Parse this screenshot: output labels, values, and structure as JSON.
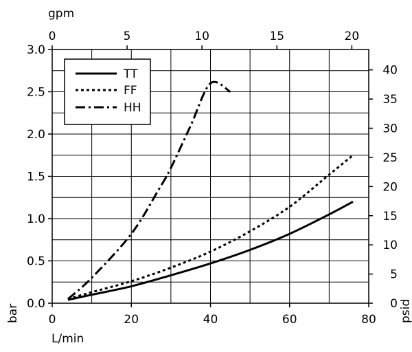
{
  "chart_data": {
    "type": "line",
    "xlabel": "L/min",
    "ylabel": "bar",
    "x_top_label": "gpm",
    "y_right_label": "psid",
    "xlim": [
      0,
      80
    ],
    "ylim": [
      0,
      3.0
    ],
    "x_top_lim": [
      0,
      21.13
    ],
    "y_right_lim": [
      0,
      43.5
    ],
    "x_ticks": [
      0,
      20,
      40,
      60,
      80
    ],
    "y_ticks": [
      0.0,
      0.5,
      1.0,
      1.5,
      2.0,
      2.5,
      3.0
    ],
    "x_top_ticks": [
      0,
      5,
      10,
      15,
      20
    ],
    "y_right_ticks": [
      0,
      5,
      10,
      15,
      20,
      25,
      30,
      35,
      40
    ],
    "x_tick_labels": [
      "0",
      "20",
      "40",
      "60",
      "80"
    ],
    "y_tick_labels": [
      "0.0",
      "0.5",
      "1.0",
      "1.5",
      "2.0",
      "2.5",
      "3.0"
    ],
    "x_top_tick_labels": [
      "0",
      "5",
      "10",
      "15",
      "20"
    ],
    "y_right_tick_labels": [
      "0",
      "5",
      "10",
      "15",
      "20",
      "25",
      "30",
      "35",
      "40"
    ],
    "grid": true,
    "legend_position": "top-left",
    "series": [
      {
        "name": "TT",
        "style": "solid",
        "x": [
          4,
          10,
          20,
          30,
          40,
          50,
          60,
          70,
          76
        ],
        "y": [
          0.04,
          0.1,
          0.2,
          0.33,
          0.47,
          0.63,
          0.82,
          1.05,
          1.2
        ]
      },
      {
        "name": "FF",
        "style": "dotted",
        "x": [
          4,
          10,
          20,
          30,
          40,
          50,
          60,
          70,
          76
        ],
        "y": [
          0.05,
          0.13,
          0.26,
          0.42,
          0.61,
          0.85,
          1.14,
          1.52,
          1.75
        ]
      },
      {
        "name": "HH",
        "style": "dashdot",
        "x": [
          4,
          10,
          20,
          27,
          30,
          35,
          40,
          45
        ],
        "y": [
          0.05,
          0.3,
          0.82,
          1.35,
          1.6,
          2.1,
          2.6,
          2.5
        ]
      }
    ]
  }
}
